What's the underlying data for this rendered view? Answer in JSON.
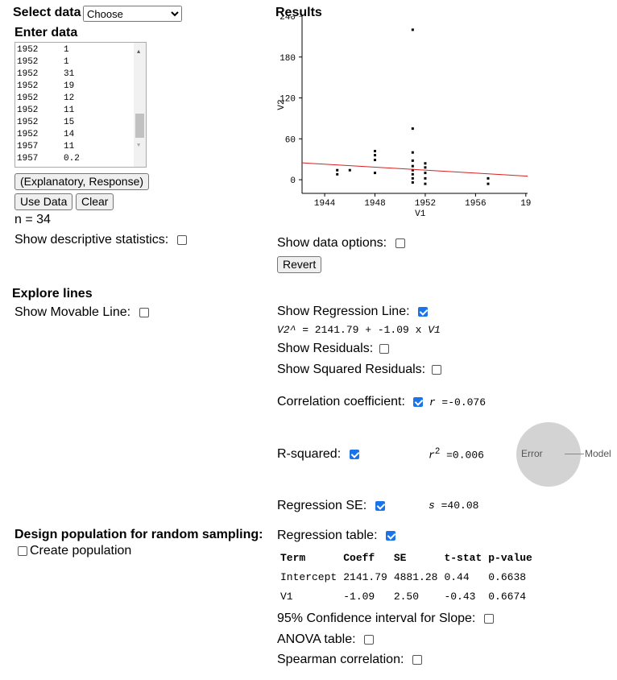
{
  "left": {
    "select_label": "Select data",
    "select_value": "Choose",
    "enter_data_label": "Enter data",
    "data_rows": [
      [
        "1952",
        "1"
      ],
      [
        "1952",
        "1"
      ],
      [
        "1952",
        "31"
      ],
      [
        "1952",
        "19"
      ],
      [
        "1952",
        "12"
      ],
      [
        "1952",
        "11"
      ],
      [
        "1952",
        "15"
      ],
      [
        "1952",
        "14"
      ],
      [
        "1957",
        "11"
      ],
      [
        "1957",
        "0.2"
      ]
    ],
    "explanatory_button": "(Explanatory, Response)",
    "use_data_button": "Use Data",
    "clear_button": "Clear",
    "n_text": "n = 34",
    "descriptive_label": "Show descriptive statistics:"
  },
  "results": {
    "title": "Results",
    "chart_data": {
      "type": "scatter",
      "xlabel": "V1",
      "ylabel": "V2",
      "x_ticks": [
        "1944",
        "1948",
        "1952",
        "1956",
        "19"
      ],
      "y_ticks": [
        "0",
        "60",
        "120",
        "180",
        "240"
      ],
      "xlim": [
        1942.2,
        1959.5
      ],
      "ylim": [
        -20,
        240
      ],
      "points": [
        [
          1945,
          8
        ],
        [
          1945,
          14
        ],
        [
          1946,
          14
        ],
        [
          1948,
          10
        ],
        [
          1948,
          29
        ],
        [
          1948,
          36
        ],
        [
          1948,
          42
        ],
        [
          1951,
          -4
        ],
        [
          1951,
          2
        ],
        [
          1951,
          8
        ],
        [
          1951,
          14
        ],
        [
          1951,
          20
        ],
        [
          1951,
          28
        ],
        [
          1951,
          40
        ],
        [
          1951,
          75
        ],
        [
          1951,
          220
        ],
        [
          1952,
          -6
        ],
        [
          1952,
          2
        ],
        [
          1952,
          10
        ],
        [
          1952,
          18
        ],
        [
          1952,
          24
        ],
        [
          1957,
          -6
        ],
        [
          1957,
          2
        ]
      ],
      "regression": {
        "intercept": 2141.79,
        "slope": -1.09
      },
      "line_color": "#d62020"
    },
    "data_options_label": "Show data options:",
    "revert_button": "Revert"
  },
  "explore": {
    "title": "Explore lines",
    "movable_label": "Show Movable Line:"
  },
  "regression": {
    "show_line_label": "Show Regression Line:",
    "equation_lhs": "V2^",
    "equation_rest": " = 2141.79 + -1.09 x ",
    "equation_var": "V1",
    "residuals_label": "Show Residuals:",
    "squared_residuals_label": "Show Squared Residuals:",
    "correlation_label": "Correlation coefficient:",
    "r_symbol": "r",
    "r_value": " =-0.076",
    "rsq_label": "R-squared:",
    "r2_symbol": "r",
    "r2_sup": "2",
    "r2_value": " =0.006",
    "error_label": "Error",
    "model_label": "Model",
    "se_label": "Regression SE:",
    "s_symbol": "s",
    "s_value": " =40.08",
    "table_label": "Regression table:",
    "table_headers": [
      "Term",
      "Coeff",
      "SE",
      "t-stat",
      "p-value"
    ],
    "table_rows": [
      [
        "Intercept",
        "2141.79",
        "4881.28",
        "0.44",
        "0.6638"
      ],
      [
        "V1",
        "-1.09",
        "2.50",
        "-0.43",
        "0.6674"
      ]
    ],
    "ci_label": "95% Confidence interval for Slope:",
    "anova_label": "ANOVA table:",
    "spearman_label": "Spearman correlation:"
  },
  "population": {
    "title": "Design population for random sampling:",
    "create_label": "Create population"
  }
}
